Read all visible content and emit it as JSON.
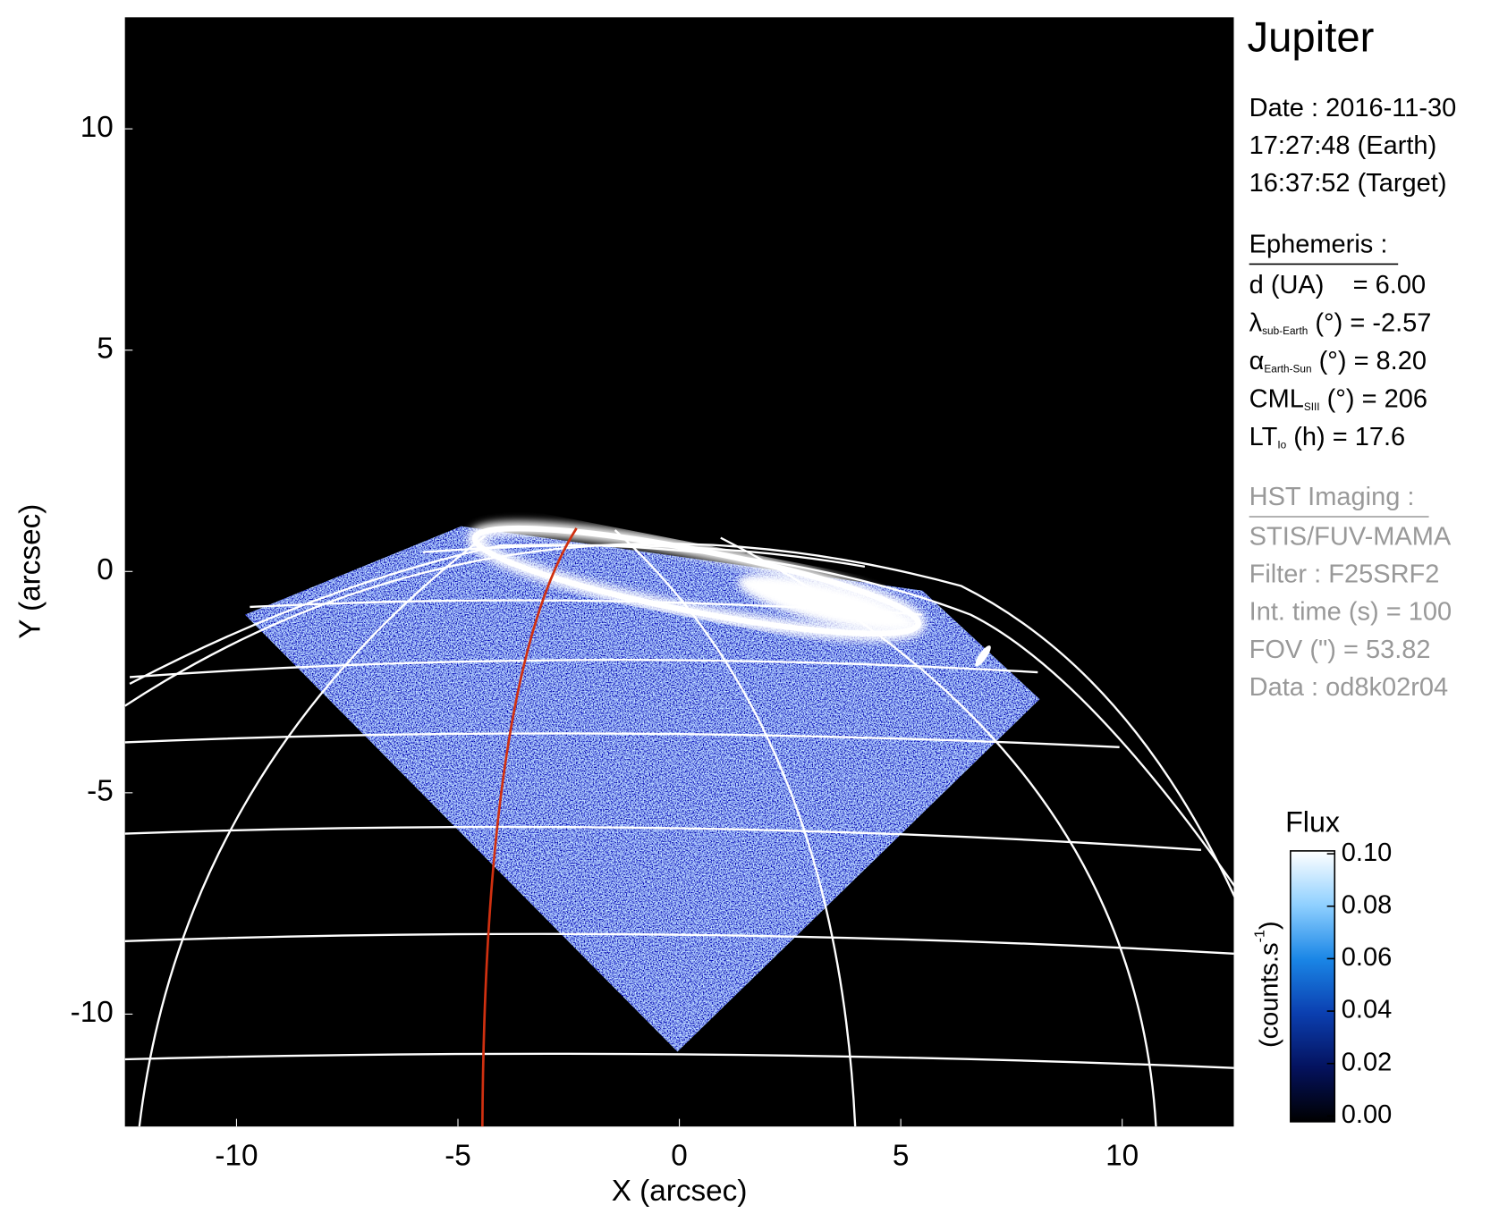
{
  "chart_data": {
    "type": "image",
    "title": "Jupiter",
    "xlabel": "X (arcsec)",
    "ylabel": "Y (arcsec)",
    "xlim": [
      -12.52,
      12.52
    ],
    "ylim": [
      -12.54,
      12.52
    ],
    "xticks": [
      -10,
      -5,
      0,
      5,
      10
    ],
    "yticks": [
      -10,
      -5,
      0,
      5,
      10
    ],
    "colorbar": {
      "label": "Flux",
      "unit": [
        "(counts.s",
        "-1",
        ")"
      ],
      "clim": [
        0,
        0.1
      ],
      "ticks": [
        {
          "value": 0,
          "label": "0.00"
        },
        0.02,
        0.04,
        0.06,
        0.08,
        {
          "value": 0.1,
          "label": "0.10"
        }
      ],
      "colors": [
        "#000000",
        "#04125e",
        "#0b3fb0",
        "#1a86e6",
        "#8fd0ff",
        "#ffffff"
      ]
    },
    "info": {
      "date": "Date : 2016-11-30",
      "earth_time": "17:27:48 (Earth)",
      "target_time": "16:37:52 (Target)",
      "ephemeris_heading": "Ephemeris :",
      "ephemeris": [
        {
          "text": "d (UA)    = 6.00"
        },
        {
          "symbol": "λ",
          "sub": "sub-Earth",
          "text": " (°) = -2.57"
        },
        {
          "symbol": "α",
          "sub": "Earth-Sun",
          "text": " (°) = 8.20"
        },
        {
          "symbol": "CML",
          "sub": "SIII",
          "text": " (°) = 206"
        },
        {
          "symbol": "LT",
          "sub": "Io",
          "text": " (h) = 17.6"
        }
      ],
      "imaging_heading": "HST Imaging :",
      "imaging": [
        "STIS/FUV-MAMA",
        "Filter : F25SRF2",
        "Int. time (s) = 100",
        "FOV (\") = 53.82",
        "Data : od8k02r04"
      ]
    }
  }
}
